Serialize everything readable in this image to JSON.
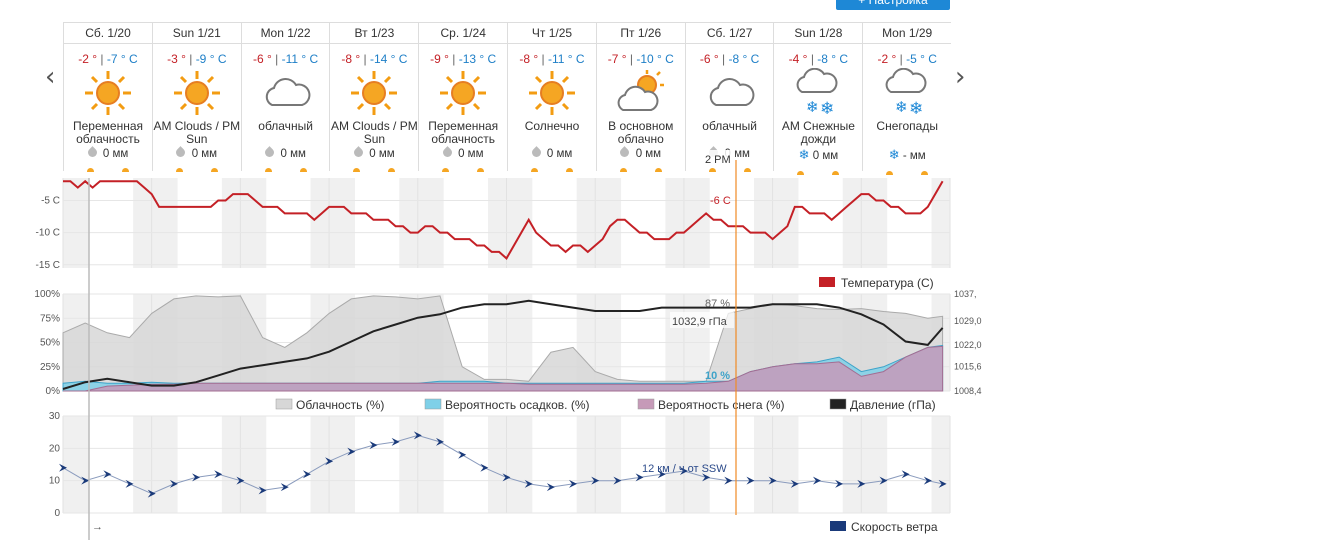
{
  "toolbar": {
    "settings_label": "+ Настройка"
  },
  "nav": {
    "prev": "‹",
    "next": "›"
  },
  "days": [
    {
      "date": "Сб. 1/20",
      "hi": "-2 °",
      "lo": "-7 ° C",
      "icon": "sun-icon",
      "cond": "Переменная облачность",
      "precip": "0 мм",
      "precip_icon": "drop-icon"
    },
    {
      "date": "Sun 1/21",
      "hi": "-3 °",
      "lo": "-9 ° C",
      "icon": "sun-icon",
      "cond": "AM Clouds / PM Sun",
      "precip": "0 мм",
      "precip_icon": "drop-icon"
    },
    {
      "date": "Mon 1/22",
      "hi": "-6 °",
      "lo": "-11 ° C",
      "icon": "cloud-icon",
      "cond": "облачный",
      "precip": "0 мм",
      "precip_icon": "drop-icon"
    },
    {
      "date": "Вт 1/23",
      "hi": "-8 °",
      "lo": "-14 ° C",
      "icon": "sun-icon",
      "cond": "AM Clouds / PM Sun",
      "precip": "0 мм",
      "precip_icon": "drop-icon"
    },
    {
      "date": "Ср. 1/24",
      "hi": "-9 °",
      "lo": "-13 ° C",
      "icon": "sun-icon",
      "cond": "Переменная облачность",
      "precip": "0 мм",
      "precip_icon": "drop-icon"
    },
    {
      "date": "Чт 1/25",
      "hi": "-8 °",
      "lo": "-11 ° C",
      "icon": "sun-icon",
      "cond": "Солнечно",
      "precip": "0 мм",
      "precip_icon": "drop-icon"
    },
    {
      "date": "Пт 1/26",
      "hi": "-7 °",
      "lo": "-10 ° C",
      "icon": "sun-cloud-icon",
      "cond": "В основном облачно",
      "precip": "0 мм",
      "precip_icon": "drop-icon"
    },
    {
      "date": "Сб. 1/27",
      "hi": "-6 °",
      "lo": "-8 ° C",
      "icon": "cloud-icon",
      "cond": "облачный",
      "precip": "0 мм",
      "precip_icon": "drop-icon"
    },
    {
      "date": "Sun 1/28",
      "hi": "-4 °",
      "lo": "-8 ° C",
      "icon": "snow-icon",
      "cond": "AM Снежные дожди",
      "precip": "0 мм",
      "precip_icon": "snowflake-icon"
    },
    {
      "date": "Mon 1/29",
      "hi": "-2 °",
      "lo": "-5 ° C",
      "icon": "snow-icon",
      "cond": "Снегопады",
      "precip": "- мм",
      "precip_icon": "snowflake-icon"
    }
  ],
  "cursor": {
    "time_label": "2 PM",
    "temp_label": "-6 C",
    "cloud_label": "87 %",
    "pressure_label": "1032,9 гПа",
    "precip_label": "10 %",
    "wind_label": "12 км / ч от SSW"
  },
  "colors": {
    "temp": "#c42026",
    "cloud_fill": "#d7d7d7",
    "precip_fill": "#7fd0e8",
    "snow_fill": "#c69ab8",
    "pressure": "#222222",
    "wind": "#1a3a7a",
    "cursor": "#f08a24"
  },
  "chart_data": [
    {
      "type": "line",
      "name": "temperature",
      "y_ticks": [
        "-5 C",
        "-10 C",
        "-15 C"
      ],
      "y_tick_values": [
        -5,
        -10,
        -15
      ],
      "ylim": [
        -15.5,
        -1.5
      ],
      "legend": [
        "Температура (C)"
      ],
      "x_hours": [
        0,
        2,
        4,
        6,
        8,
        10,
        12,
        14,
        16,
        18,
        20,
        22,
        24,
        26,
        28,
        30,
        32,
        34,
        36,
        38,
        40,
        42,
        44,
        46,
        48,
        50,
        52,
        54,
        56,
        58,
        60,
        62,
        64,
        66,
        68,
        70,
        72,
        74,
        76,
        78,
        80,
        82,
        84,
        86,
        88,
        90,
        92,
        94,
        96,
        98,
        100,
        102,
        104,
        106,
        108,
        110,
        112,
        114,
        116,
        118,
        120,
        122,
        124,
        126,
        128,
        130,
        132,
        134,
        136,
        138,
        140,
        142,
        144,
        146,
        148,
        150,
        152,
        154,
        156,
        158,
        160,
        162,
        164,
        166,
        168,
        170,
        172,
        174,
        176,
        178,
        180,
        182,
        184,
        186,
        188,
        190,
        192,
        194,
        196,
        198,
        200,
        202,
        204,
        206,
        208,
        210,
        212,
        214,
        216,
        218,
        220,
        222,
        224,
        226,
        228,
        230,
        232,
        234,
        236,
        238
      ],
      "values": [
        -2,
        -2,
        -3,
        -2,
        -3,
        -2,
        -2,
        -2,
        -2,
        -2,
        -2,
        -3,
        -4,
        -6,
        -6,
        -6,
        -6,
        -6,
        -6,
        -6,
        -6,
        -5,
        -5,
        -4,
        -4,
        -4,
        -5,
        -6,
        -6,
        -6,
        -7,
        -7,
        -7,
        -7,
        -8,
        -7,
        -6,
        -6,
        -6,
        -7,
        -7,
        -7,
        -8,
        -8,
        -8,
        -9,
        -9,
        -10,
        -10,
        -9,
        -9,
        -10,
        -10,
        -11,
        -11,
        -11,
        -12,
        -12,
        -13,
        -13,
        -14,
        -12,
        -10,
        -8,
        -10,
        -11,
        -12,
        -12,
        -13,
        -12,
        -12,
        -13,
        -12,
        -11,
        -9,
        -8,
        -8,
        -9,
        -10,
        -10,
        -11,
        -11,
        -11,
        -10,
        -10,
        -9,
        -8,
        -7,
        -8,
        -8,
        -9,
        -9,
        -9,
        -10,
        -10,
        -10,
        -11,
        -10,
        -9,
        -6,
        -6,
        -7,
        -7,
        -7,
        -8,
        -7,
        -6,
        -5,
        -4,
        -4,
        -5,
        -5,
        -6,
        -6,
        -7,
        -7,
        -7,
        -6,
        -4,
        -2
      ]
    },
    {
      "type": "area",
      "name": "clouds-precip-pressure",
      "y_ticks": [
        "100%",
        "75%",
        "50%",
        "25%",
        "0%"
      ],
      "y_tick_values": [
        100,
        75,
        50,
        25,
        0
      ],
      "ylim": [
        0,
        100
      ],
      "y2_ticks": [
        "1037,",
        "1029,0",
        "1022,0",
        "1015,6",
        "1008,4"
      ],
      "y2_tick_values": [
        1037,
        1029,
        1022,
        1015.6,
        1008.4
      ],
      "y2lim": [
        1008.4,
        1037
      ],
      "legend": [
        "Облачность (%)",
        "Вероятность осадков. (%)",
        "Вероятность снега (%)",
        "Давление (гПа)"
      ],
      "x_hours": [
        0,
        6,
        12,
        18,
        24,
        30,
        36,
        42,
        48,
        54,
        60,
        66,
        72,
        78,
        84,
        90,
        96,
        102,
        108,
        114,
        120,
        126,
        132,
        138,
        144,
        150,
        156,
        162,
        168,
        174,
        180,
        186,
        192,
        198,
        204,
        210,
        216,
        222,
        228,
        234,
        238
      ],
      "cloud": [
        60,
        70,
        60,
        55,
        80,
        95,
        98,
        97,
        98,
        55,
        45,
        60,
        80,
        95,
        98,
        97,
        95,
        98,
        25,
        12,
        12,
        10,
        40,
        45,
        20,
        12,
        10,
        10,
        10,
        10,
        80,
        85,
        90,
        88,
        85,
        84,
        85,
        82,
        80,
        75,
        77
      ],
      "precip": [
        8,
        10,
        8,
        8,
        9,
        8,
        8,
        8,
        8,
        8,
        8,
        8,
        8,
        8,
        8,
        8,
        8,
        10,
        10,
        10,
        8,
        8,
        8,
        8,
        8,
        8,
        8,
        8,
        8,
        10,
        10,
        20,
        25,
        28,
        30,
        35,
        20,
        25,
        35,
        45,
        47
      ],
      "snow": [
        0,
        0,
        5,
        6,
        7,
        7,
        8,
        8,
        8,
        8,
        8,
        8,
        8,
        8,
        8,
        8,
        8,
        8,
        8,
        8,
        8,
        7,
        7,
        7,
        7,
        7,
        7,
        7,
        7,
        8,
        10,
        20,
        25,
        28,
        28,
        30,
        15,
        20,
        35,
        45,
        46
      ],
      "pressure": [
        1009,
        1011,
        1012,
        1011,
        1010,
        1010,
        1011,
        1013,
        1015,
        1016,
        1017,
        1018,
        1020,
        1023,
        1026,
        1028,
        1030,
        1031,
        1033,
        1034,
        1034,
        1035,
        1034,
        1033,
        1032,
        1032,
        1032,
        1033,
        1033,
        1033,
        1033,
        1033,
        1034,
        1034,
        1034,
        1033,
        1031,
        1028,
        1023,
        1022,
        1027
      ]
    },
    {
      "type": "line",
      "name": "wind",
      "y_ticks": [
        "30",
        "20",
        "10",
        "0"
      ],
      "y_tick_values": [
        30,
        20,
        10,
        0
      ],
      "ylim": [
        0,
        30
      ],
      "legend": [
        "Скорость ветра"
      ],
      "x_hours": [
        0,
        6,
        12,
        18,
        24,
        30,
        36,
        42,
        48,
        54,
        60,
        66,
        72,
        78,
        84,
        90,
        96,
        102,
        108,
        114,
        120,
        126,
        132,
        138,
        144,
        150,
        156,
        162,
        168,
        174,
        180,
        186,
        192,
        198,
        204,
        210,
        216,
        222,
        228,
        234,
        238
      ],
      "values": [
        14,
        10,
        12,
        9,
        6,
        9,
        11,
        12,
        10,
        7,
        8,
        12,
        16,
        19,
        21,
        22,
        24,
        22,
        18,
        14,
        11,
        9,
        8,
        9,
        10,
        10,
        11,
        12,
        13,
        11,
        10,
        10,
        10,
        9,
        10,
        9,
        9,
        10,
        12,
        10,
        9
      ]
    }
  ]
}
